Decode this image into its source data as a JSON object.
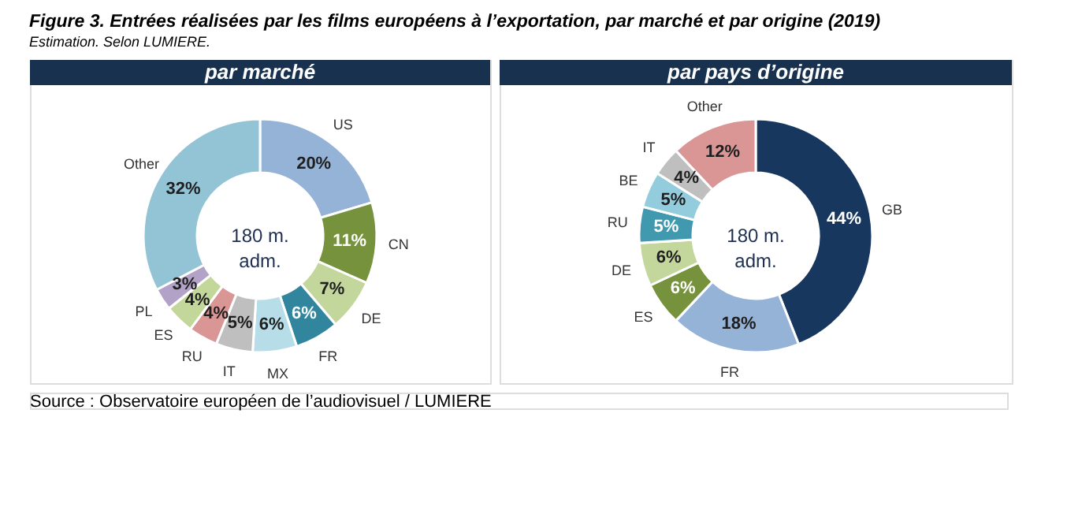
{
  "chart_data": [
    {
      "type": "donut",
      "title": "par marché",
      "categories": [
        "US",
        "CN",
        "DE",
        "FR",
        "MX",
        "IT",
        "RU",
        "ES",
        "PL",
        "Other"
      ],
      "values": [
        20,
        11,
        7,
        6,
        6,
        5,
        4,
        4,
        3,
        32
      ],
      "value_labels": [
        "20%",
        "11%",
        "7%",
        "6%",
        "6%",
        "5%",
        "4%",
        "4%",
        "3%",
        "32%"
      ],
      "colors": [
        "#95b3d7",
        "#76923c",
        "#c3d69b",
        "#31859c",
        "#b7dee8",
        "#bfbfbf",
        "#d99694",
        "#c4d79b",
        "#b3a2c7",
        "#93c4d6"
      ],
      "annotations": [
        "Figure 3.   Entrées réalisées par les films européens à l’exportation, par marché et par origine (2019)",
        "Estimation. Selon LUMIERE.",
        "180 m.\nadm.",
        "Source : Observatoire européen de l’audiovisuel / LUMIERE"
      ]
    },
    {
      "type": "donut",
      "title": "par pays d’origine",
      "categories": [
        "GB",
        "FR",
        "ES",
        "DE",
        "RU",
        "BE",
        "IT",
        "Other"
      ],
      "values": [
        44,
        18,
        6,
        6,
        5,
        5,
        4,
        12
      ],
      "value_labels": [
        "44%",
        "18%",
        "6%",
        "6%",
        "5%",
        "5%",
        "4%",
        "12%"
      ],
      "colors": [
        "#17375e",
        "#95b3d7",
        "#76923c",
        "#c3d69b",
        "#4199b0",
        "#93cddd",
        "#bfbfbf",
        "#d99694"
      ],
      "annotations": [
        "180 m.\nadm."
      ]
    }
  ]
}
